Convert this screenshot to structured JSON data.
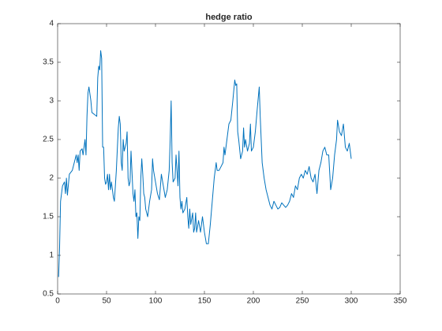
{
  "chart_data": {
    "type": "line",
    "title": "hedge ratio",
    "x": [
      1,
      2,
      3,
      5,
      7,
      8,
      9,
      10,
      12,
      15,
      17,
      19,
      20,
      21,
      22,
      23,
      25,
      26,
      28,
      29,
      30,
      31,
      32,
      34,
      35,
      38,
      40,
      41,
      42,
      43,
      44,
      45,
      46,
      47,
      48,
      49,
      50,
      51,
      52,
      53,
      54,
      55,
      57,
      58,
      60,
      62,
      63,
      64,
      65,
      66,
      67,
      68,
      70,
      71,
      72,
      73,
      74,
      75,
      77,
      78,
      79,
      80,
      81,
      82,
      83,
      84,
      85,
      86,
      87,
      88,
      89,
      90,
      92,
      94,
      96,
      97,
      98,
      100,
      102,
      104,
      106,
      108,
      110,
      112,
      114,
      115,
      116,
      117,
      118,
      120,
      121,
      122,
      123,
      124,
      125,
      126,
      127,
      128,
      130,
      132,
      133,
      134,
      135,
      136,
      138,
      139,
      140,
      141,
      142,
      144,
      146,
      148,
      150,
      152,
      154,
      156,
      158,
      160,
      162,
      163,
      165,
      167,
      169,
      170,
      171,
      173,
      175,
      177,
      179,
      181,
      182,
      183,
      184,
      185,
      187,
      189,
      190,
      191,
      192,
      194,
      196,
      197,
      198,
      200,
      202,
      204,
      206,
      207,
      208,
      209,
      211,
      213,
      215,
      217,
      219,
      221,
      223,
      225,
      227,
      229,
      231,
      233,
      235,
      237,
      239,
      241,
      243,
      245,
      247,
      249,
      251,
      253,
      255,
      257,
      259,
      261,
      263,
      265,
      267,
      269,
      271,
      273,
      275,
      277,
      279,
      281,
      283,
      285,
      286,
      288,
      290,
      292,
      294,
      296,
      298,
      300
    ],
    "series": [
      {
        "name": "hedge ratio",
        "color": "#0072bd",
        "values": [
          0.72,
          1.1,
          1.7,
          1.9,
          1.95,
          1.8,
          2.0,
          1.78,
          2.05,
          2.1,
          2.2,
          2.3,
          2.2,
          2.3,
          2.1,
          2.35,
          2.38,
          2.3,
          2.5,
          2.3,
          2.8,
          3.1,
          3.18,
          3.0,
          2.85,
          2.82,
          2.8,
          3.3,
          3.45,
          3.4,
          3.65,
          3.55,
          2.4,
          2.4,
          2.0,
          1.92,
          1.95,
          2.05,
          1.85,
          2.05,
          1.85,
          1.95,
          1.75,
          1.7,
          2.1,
          2.65,
          2.8,
          2.7,
          2.2,
          2.1,
          2.5,
          2.35,
          2.45,
          2.6,
          2.0,
          1.9,
          1.95,
          2.35,
          1.8,
          1.7,
          1.85,
          1.5,
          1.55,
          1.22,
          1.5,
          1.45,
          2.0,
          2.25,
          2.05,
          1.8,
          1.75,
          1.6,
          1.5,
          1.7,
          1.85,
          2.25,
          2.1,
          1.95,
          1.8,
          1.72,
          2.05,
          1.9,
          1.75,
          1.85,
          2.1,
          2.5,
          3.0,
          2.2,
          1.95,
          2.0,
          2.3,
          2.1,
          1.9,
          2.35,
          1.75,
          1.6,
          1.7,
          1.55,
          1.6,
          1.75,
          1.5,
          1.35,
          1.6,
          1.4,
          1.55,
          1.3,
          1.35,
          1.55,
          1.3,
          1.45,
          1.3,
          1.5,
          1.3,
          1.15,
          1.15,
          1.4,
          1.7,
          2.0,
          2.2,
          2.1,
          2.1,
          2.15,
          2.2,
          2.4,
          2.3,
          2.5,
          2.7,
          2.75,
          3.0,
          3.27,
          3.2,
          3.22,
          2.6,
          2.5,
          2.25,
          2.35,
          2.65,
          2.4,
          2.5,
          2.35,
          2.45,
          2.7,
          2.35,
          2.4,
          2.6,
          2.9,
          3.18,
          2.8,
          2.5,
          2.2,
          2.0,
          1.85,
          1.75,
          1.65,
          1.6,
          1.7,
          1.65,
          1.6,
          1.62,
          1.68,
          1.65,
          1.62,
          1.65,
          1.7,
          1.8,
          1.75,
          1.9,
          1.85,
          2.0,
          2.05,
          2.0,
          2.1,
          2.05,
          2.15,
          2.0,
          1.95,
          2.05,
          1.8,
          2.1,
          2.2,
          2.35,
          2.4,
          2.3,
          2.3,
          1.85,
          2.0,
          2.3,
          2.5,
          2.75,
          2.6,
          2.55,
          2.7,
          2.4,
          2.35,
          2.45,
          2.25
        ]
      }
    ],
    "xlim": [
      0,
      350
    ],
    "xticks": [
      0,
      50,
      100,
      150,
      200,
      250,
      300,
      350
    ],
    "ylim": [
      0.5,
      4
    ],
    "yticks": [
      0.5,
      1,
      1.5,
      2,
      2.5,
      3,
      3.5,
      4
    ]
  }
}
